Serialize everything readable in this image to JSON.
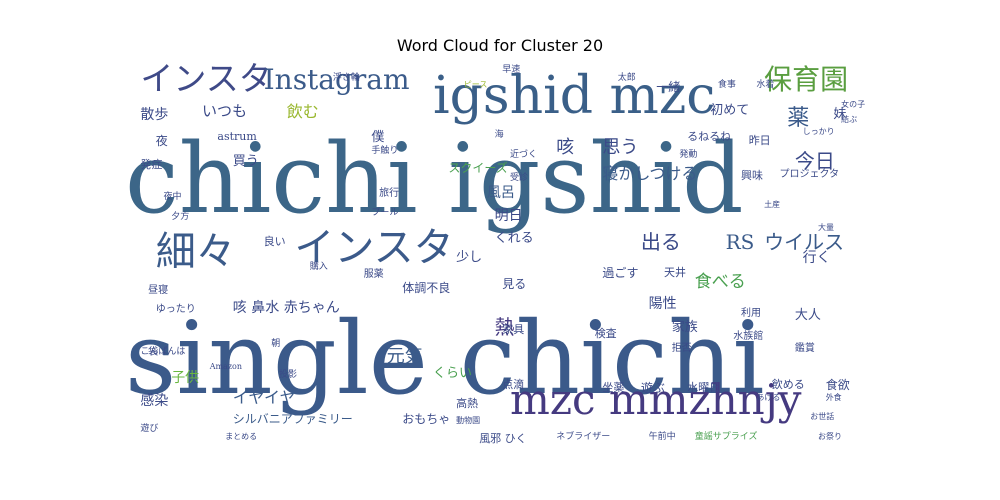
{
  "chart_data": {
    "type": "wordcloud",
    "title": "Word Cloud for Cluster 20",
    "words": [
      {
        "text": "single chichi",
        "weight": 1.0,
        "color": "#3b5a8a",
        "x": 0.0,
        "y": 0.64,
        "size": 100
      },
      {
        "text": "chichi igshid",
        "weight": 0.95,
        "color": "#3c6688",
        "x": 0.0,
        "y": 0.18,
        "size": 96
      },
      {
        "text": "igshid mzc",
        "weight": 0.55,
        "color": "#3a5f88",
        "x": 0.4,
        "y": 0.02,
        "size": 52
      },
      {
        "text": "mzc mmzhnjy",
        "weight": 0.45,
        "color": "#453a80",
        "x": 0.5,
        "y": 0.82,
        "size": 42
      },
      {
        "text": "細々",
        "weight": 0.42,
        "color": "#3b5b8a",
        "x": 0.04,
        "y": 0.44,
        "size": 40
      },
      {
        "text": "インスタ",
        "weight": 0.42,
        "color": "#3b5a8a",
        "x": 0.22,
        "y": 0.43,
        "size": 40
      },
      {
        "text": "インスタ",
        "weight": 0.35,
        "color": "#3f4a88",
        "x": 0.02,
        "y": 0.0,
        "size": 33
      },
      {
        "text": "Instagram",
        "weight": 0.3,
        "color": "#3b5b8a",
        "x": 0.18,
        "y": 0.01,
        "size": 28
      },
      {
        "text": "保育園",
        "weight": 0.28,
        "color": "#5a9e40",
        "x": 0.83,
        "y": 0.01,
        "size": 28
      },
      {
        "text": "RS",
        "weight": 0.2,
        "color": "#3b5b8a",
        "x": 0.78,
        "y": 0.44,
        "size": 20
      },
      {
        "text": "ウイルス",
        "weight": 0.2,
        "color": "#3b5b8a",
        "x": 0.83,
        "y": 0.44,
        "size": 20
      },
      {
        "text": "今日",
        "weight": 0.2,
        "color": "#3b4a88",
        "x": 0.87,
        "y": 0.23,
        "size": 20
      },
      {
        "text": "薬",
        "weight": 0.22,
        "color": "#3a5a8a",
        "x": 0.86,
        "y": 0.12,
        "size": 22
      },
      {
        "text": "出る",
        "weight": 0.2,
        "color": "#3b4a88",
        "x": 0.67,
        "y": 0.44,
        "size": 20
      },
      {
        "text": "咳",
        "weight": 0.18,
        "color": "#3b4a88",
        "x": 0.56,
        "y": 0.2,
        "size": 18
      },
      {
        "text": "思う",
        "weight": 0.18,
        "color": "#3b4a88",
        "x": 0.62,
        "y": 0.2,
        "size": 18
      },
      {
        "text": "寝かしつける",
        "weight": 0.15,
        "color": "#3b5b8a",
        "x": 0.62,
        "y": 0.27,
        "size": 16
      },
      {
        "text": "食べる",
        "weight": 0.16,
        "color": "#4aa050",
        "x": 0.74,
        "y": 0.55,
        "size": 17
      },
      {
        "text": "熱",
        "weight": 0.2,
        "color": "#453a80",
        "x": 0.48,
        "y": 0.66,
        "size": 20
      },
      {
        "text": "元気",
        "weight": 0.18,
        "color": "#3b5b8a",
        "x": 0.34,
        "y": 0.74,
        "size": 18
      },
      {
        "text": "咳 鼻水 赤ちゃん",
        "weight": 0.13,
        "color": "#3b4a88",
        "x": 0.14,
        "y": 0.62,
        "size": 14
      },
      {
        "text": "イヤイヤ",
        "weight": 0.15,
        "color": "#3b5b8a",
        "x": 0.14,
        "y": 0.85,
        "size": 16
      },
      {
        "text": "感染",
        "weight": 0.13,
        "color": "#3b4a88",
        "x": 0.02,
        "y": 0.86,
        "size": 14
      },
      {
        "text": "子供",
        "weight": 0.13,
        "color": "#6ab740",
        "x": 0.06,
        "y": 0.8,
        "size": 14
      },
      {
        "text": "シルバニアファミリー",
        "weight": 0.1,
        "color": "#3b5b8a",
        "x": 0.14,
        "y": 0.91,
        "size": 12
      },
      {
        "text": "おもちゃ",
        "weight": 0.11,
        "color": "#3b4a88",
        "x": 0.36,
        "y": 0.91,
        "size": 12
      },
      {
        "text": "風邪 ひく",
        "weight": 0.1,
        "color": "#3b4a88",
        "x": 0.46,
        "y": 0.96,
        "size": 11
      },
      {
        "text": "ネブライザー",
        "weight": 0.08,
        "color": "#3b4a88",
        "x": 0.56,
        "y": 0.96,
        "size": 9
      },
      {
        "text": "午前中",
        "weight": 0.07,
        "color": "#3b4a88",
        "x": 0.68,
        "y": 0.96,
        "size": 9
      },
      {
        "text": "童謡サプライズ",
        "weight": 0.08,
        "color": "#4aa050",
        "x": 0.74,
        "y": 0.96,
        "size": 9
      },
      {
        "text": "お祭り",
        "weight": 0.07,
        "color": "#3b4a88",
        "x": 0.9,
        "y": 0.96,
        "size": 8
      },
      {
        "text": "飲む",
        "weight": 0.15,
        "color": "#9ab830",
        "x": 0.21,
        "y": 0.11,
        "size": 16
      },
      {
        "text": "いつも",
        "weight": 0.14,
        "color": "#3b4a88",
        "x": 0.1,
        "y": 0.11,
        "size": 15
      },
      {
        "text": "散歩",
        "weight": 0.13,
        "color": "#3b4a88",
        "x": 0.02,
        "y": 0.12,
        "size": 14
      },
      {
        "text": "夜",
        "weight": 0.1,
        "color": "#3b4a88",
        "x": 0.04,
        "y": 0.19,
        "size": 12
      },
      {
        "text": "発症",
        "weight": 0.09,
        "color": "#3b4a88",
        "x": 0.02,
        "y": 0.25,
        "size": 11
      },
      {
        "text": "買う",
        "weight": 0.12,
        "color": "#3b4a88",
        "x": 0.14,
        "y": 0.24,
        "size": 13
      },
      {
        "text": "僕",
        "weight": 0.12,
        "color": "#3b4a88",
        "x": 0.32,
        "y": 0.18,
        "size": 13
      },
      {
        "text": "astrum",
        "weight": 0.09,
        "color": "#3b4a88",
        "x": 0.12,
        "y": 0.18,
        "size": 11
      },
      {
        "text": "スクイーズ",
        "weight": 0.1,
        "color": "#4aa050",
        "x": 0.42,
        "y": 0.26,
        "size": 12
      },
      {
        "text": "風呂",
        "weight": 0.12,
        "color": "#3b5b8a",
        "x": 0.47,
        "y": 0.32,
        "size": 14
      },
      {
        "text": "明日",
        "weight": 0.12,
        "color": "#3b4a88",
        "x": 0.48,
        "y": 0.38,
        "size": 14
      },
      {
        "text": "くれる",
        "weight": 0.12,
        "color": "#3b4a88",
        "x": 0.48,
        "y": 0.44,
        "size": 13
      },
      {
        "text": "少し",
        "weight": 0.12,
        "color": "#3b4a88",
        "x": 0.43,
        "y": 0.49,
        "size": 13
      },
      {
        "text": "見る",
        "weight": 0.11,
        "color": "#3b4a88",
        "x": 0.49,
        "y": 0.56,
        "size": 12
      },
      {
        "text": "行く",
        "weight": 0.13,
        "color": "#3b4a88",
        "x": 0.88,
        "y": 0.49,
        "size": 14
      },
      {
        "text": "大人",
        "weight": 0.12,
        "color": "#3b4a88",
        "x": 0.87,
        "y": 0.64,
        "size": 13
      },
      {
        "text": "陽性",
        "weight": 0.13,
        "color": "#3b4a88",
        "x": 0.68,
        "y": 0.61,
        "size": 14
      },
      {
        "text": "家族",
        "weight": 0.12,
        "color": "#3b4a88",
        "x": 0.71,
        "y": 0.67,
        "size": 13
      },
      {
        "text": "過ごす",
        "weight": 0.1,
        "color": "#3b4a88",
        "x": 0.62,
        "y": 0.53,
        "size": 12
      },
      {
        "text": "天井",
        "weight": 0.09,
        "color": "#3b4a88",
        "x": 0.7,
        "y": 0.53,
        "size": 11
      },
      {
        "text": "体調不良",
        "weight": 0.1,
        "color": "#3b4a88",
        "x": 0.36,
        "y": 0.57,
        "size": 12
      },
      {
        "text": "家具",
        "weight": 0.09,
        "color": "#3b4a88",
        "x": 0.49,
        "y": 0.68,
        "size": 11
      },
      {
        "text": "検査",
        "weight": 0.09,
        "color": "#3b4a88",
        "x": 0.61,
        "y": 0.69,
        "size": 11
      },
      {
        "text": "くらい",
        "weight": 0.12,
        "color": "#4aa050",
        "x": 0.4,
        "y": 0.79,
        "size": 13
      },
      {
        "text": "点滴",
        "weight": 0.09,
        "color": "#3b4a88",
        "x": 0.49,
        "y": 0.82,
        "size": 11
      },
      {
        "text": "高熱",
        "weight": 0.09,
        "color": "#3b4a88",
        "x": 0.43,
        "y": 0.87,
        "size": 11
      },
      {
        "text": "坐薬",
        "weight": 0.09,
        "color": "#3b4a88",
        "x": 0.62,
        "y": 0.83,
        "size": 11
      },
      {
        "text": "遊ぶ",
        "weight": 0.1,
        "color": "#3b4a88",
        "x": 0.67,
        "y": 0.83,
        "size": 12
      },
      {
        "text": "水曜日",
        "weight": 0.09,
        "color": "#3b4a88",
        "x": 0.73,
        "y": 0.83,
        "size": 11
      },
      {
        "text": "飲める",
        "weight": 0.09,
        "color": "#3b4a88",
        "x": 0.84,
        "y": 0.82,
        "size": 11
      },
      {
        "text": "食欲",
        "weight": 0.11,
        "color": "#3b4a88",
        "x": 0.91,
        "y": 0.82,
        "size": 12
      },
      {
        "text": "一緒",
        "weight": 0.1,
        "color": "#3b4a88",
        "x": 0.69,
        "y": 0.05,
        "size": 12
      },
      {
        "text": "初めて",
        "weight": 0.11,
        "color": "#3b4a88",
        "x": 0.76,
        "y": 0.11,
        "size": 13
      },
      {
        "text": "るねるね",
        "weight": 0.09,
        "color": "#3b4a88",
        "x": 0.73,
        "y": 0.18,
        "size": 11
      },
      {
        "text": "昨日",
        "weight": 0.09,
        "color": "#3b4a88",
        "x": 0.81,
        "y": 0.19,
        "size": 11
      },
      {
        "text": "興味",
        "weight": 0.09,
        "color": "#3b4a88",
        "x": 0.8,
        "y": 0.28,
        "size": 11
      },
      {
        "text": "プロジェクタ",
        "weight": 0.08,
        "color": "#3b4a88",
        "x": 0.85,
        "y": 0.28,
        "size": 10
      },
      {
        "text": "妹",
        "weight": 0.11,
        "color": "#3b4a88",
        "x": 0.92,
        "y": 0.12,
        "size": 13
      },
      {
        "text": "食事",
        "weight": 0.08,
        "color": "#3b4a88",
        "x": 0.77,
        "y": 0.05,
        "size": 9
      },
      {
        "text": "水着",
        "weight": 0.08,
        "color": "#3b4a88",
        "x": 0.82,
        "y": 0.05,
        "size": 9
      },
      {
        "text": "利用",
        "weight": 0.08,
        "color": "#3b4a88",
        "x": 0.8,
        "y": 0.64,
        "size": 10
      },
      {
        "text": "水族館",
        "weight": 0.08,
        "color": "#3b4a88",
        "x": 0.79,
        "y": 0.7,
        "size": 10
      },
      {
        "text": "鑑賞",
        "weight": 0.08,
        "color": "#3b4a88",
        "x": 0.87,
        "y": 0.73,
        "size": 10
      },
      {
        "text": "拒否",
        "weight": 0.08,
        "color": "#3b4a88",
        "x": 0.71,
        "y": 0.73,
        "size": 10
      },
      {
        "text": "旅行",
        "weight": 0.08,
        "color": "#3b4a88",
        "x": 0.33,
        "y": 0.33,
        "size": 10
      },
      {
        "text": "プール",
        "weight": 0.07,
        "color": "#3b4a88",
        "x": 0.32,
        "y": 0.38,
        "size": 9
      },
      {
        "text": "良い",
        "weight": 0.09,
        "color": "#3b4a88",
        "x": 0.18,
        "y": 0.45,
        "size": 11
      },
      {
        "text": "購入",
        "weight": 0.07,
        "color": "#3b4a88",
        "x": 0.24,
        "y": 0.52,
        "size": 9
      },
      {
        "text": "服薬",
        "weight": 0.08,
        "color": "#3b4a88",
        "x": 0.31,
        "y": 0.54,
        "size": 10
      },
      {
        "text": "昼寝",
        "weight": 0.08,
        "color": "#3b4a88",
        "x": 0.03,
        "y": 0.58,
        "size": 10
      },
      {
        "text": "ゆったり",
        "weight": 0.08,
        "color": "#3b4a88",
        "x": 0.04,
        "y": 0.63,
        "size": 10
      },
      {
        "text": "袋",
        "weight": 0.08,
        "color": "#3b4a88",
        "x": 0.03,
        "y": 0.74,
        "size": 10
      },
      {
        "text": "こんぱんは",
        "weight": 0.08,
        "color": "#3b4a88",
        "x": 0.02,
        "y": 0.74,
        "size": 9
      },
      {
        "text": "夜中",
        "weight": 0.07,
        "color": "#3b4a88",
        "x": 0.05,
        "y": 0.34,
        "size": 9
      },
      {
        "text": "夕方",
        "weight": 0.07,
        "color": "#3b4a88",
        "x": 0.06,
        "y": 0.39,
        "size": 9
      },
      {
        "text": "朝",
        "weight": 0.07,
        "color": "#3b4a88",
        "x": 0.19,
        "y": 0.72,
        "size": 9
      },
      {
        "text": "投影",
        "weight": 0.07,
        "color": "#3b4a88",
        "x": 0.2,
        "y": 0.8,
        "size": 9
      },
      {
        "text": "遊び",
        "weight": 0.07,
        "color": "#3b4a88",
        "x": 0.02,
        "y": 0.94,
        "size": 9
      },
      {
        "text": "まとめる",
        "weight": 0.06,
        "color": "#3b4a88",
        "x": 0.13,
        "y": 0.96,
        "size": 8
      },
      {
        "text": "手触り",
        "weight": 0.07,
        "color": "#3b4a88",
        "x": 0.32,
        "y": 0.22,
        "size": 9
      },
      {
        "text": "浮き輪",
        "weight": 0.07,
        "color": "#3b4a88",
        "x": 0.27,
        "y": 0.03,
        "size": 9
      },
      {
        "text": "太郎",
        "weight": 0.07,
        "color": "#3b4a88",
        "x": 0.64,
        "y": 0.03,
        "size": 9
      },
      {
        "text": "早速",
        "weight": 0.07,
        "color": "#3b4a88",
        "x": 0.49,
        "y": 0.01,
        "size": 9
      },
      {
        "text": "海",
        "weight": 0.07,
        "color": "#3b4a88",
        "x": 0.48,
        "y": 0.18,
        "size": 9
      },
      {
        "text": "受診",
        "weight": 0.07,
        "color": "#3b4a88",
        "x": 0.5,
        "y": 0.29,
        "size": 9
      },
      {
        "text": "近づく",
        "weight": 0.07,
        "color": "#3b4a88",
        "x": 0.5,
        "y": 0.23,
        "size": 9
      },
      {
        "text": "発動",
        "weight": 0.07,
        "color": "#3b4a88",
        "x": 0.72,
        "y": 0.23,
        "size": 9
      },
      {
        "text": "土産",
        "weight": 0.06,
        "color": "#3b4a88",
        "x": 0.83,
        "y": 0.36,
        "size": 8
      },
      {
        "text": "大量",
        "weight": 0.06,
        "color": "#3b4a88",
        "x": 0.9,
        "y": 0.42,
        "size": 8
      },
      {
        "text": "女の子",
        "weight": 0.06,
        "color": "#3b4a88",
        "x": 0.93,
        "y": 0.1,
        "size": 8
      },
      {
        "text": "結ぶ",
        "weight": 0.06,
        "color": "#3b4a88",
        "x": 0.93,
        "y": 0.14,
        "size": 8
      },
      {
        "text": "しっかり",
        "weight": 0.06,
        "color": "#3b4a88",
        "x": 0.88,
        "y": 0.17,
        "size": 8
      },
      {
        "text": "動物園",
        "weight": 0.06,
        "color": "#3b4a88",
        "x": 0.43,
        "y": 0.92,
        "size": 8
      },
      {
        "text": "外食",
        "weight": 0.06,
        "color": "#3b4a88",
        "x": 0.91,
        "y": 0.86,
        "size": 8
      },
      {
        "text": "お世話",
        "weight": 0.06,
        "color": "#3b4a88",
        "x": 0.89,
        "y": 0.91,
        "size": 8
      },
      {
        "text": "あげる",
        "weight": 0.06,
        "color": "#3b4a88",
        "x": 0.82,
        "y": 0.86,
        "size": 8
      },
      {
        "text": "Amazon",
        "weight": 0.06,
        "color": "#3b4a88",
        "x": 0.11,
        "y": 0.78,
        "size": 8
      },
      {
        "text": "ピース",
        "weight": 0.06,
        "color": "#9ab830",
        "x": 0.44,
        "y": 0.05,
        "size": 8
      }
    ]
  }
}
